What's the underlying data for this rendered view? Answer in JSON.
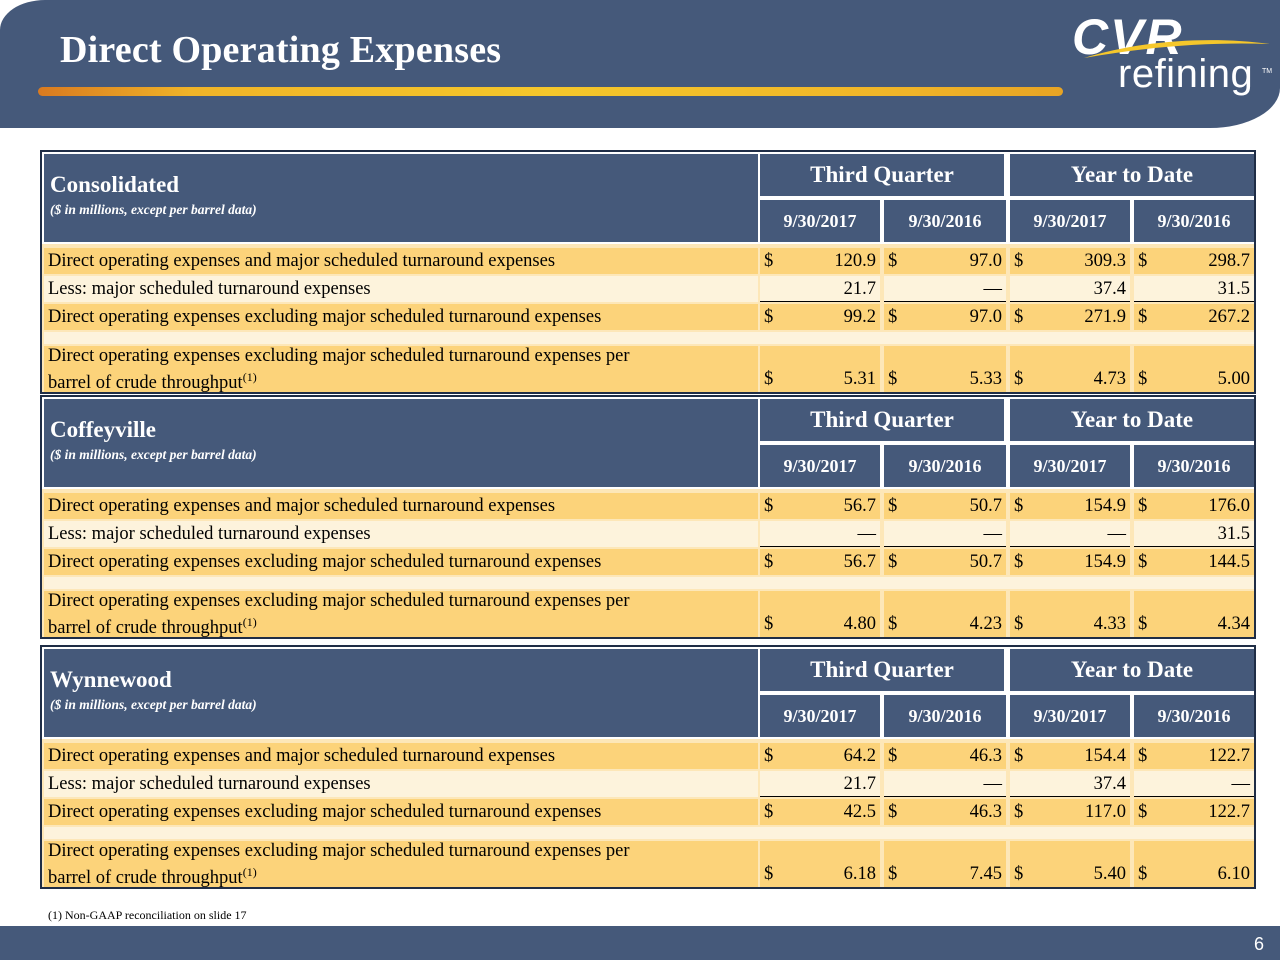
{
  "header": {
    "title": "Direct Operating Expenses"
  },
  "logo": {
    "brand": "CVR",
    "sub": "refining",
    "tm": "TM",
    "swoosh_color": "#f5c72b"
  },
  "labels": {
    "row1": "Direct operating expenses and major scheduled turnaround expenses",
    "row2": "Less: major scheduled turnaround expenses",
    "row3": "Direct operating expenses excluding major scheduled turnaround expenses",
    "row4_line1": "Direct operating expenses excluding major scheduled turnaround expenses per",
    "row4_line2": "barrel of crude throughput",
    "row4_sup": "(1)",
    "group1": "Third Quarter",
    "group2": "Year to Date",
    "date1": "9/30/2017",
    "date2": "9/30/2016",
    "date3": "9/30/2017",
    "date4": "9/30/2016",
    "subtitle": "($ in millions, except per barrel data)",
    "dollar": "$"
  },
  "sections": [
    {
      "name": "Consolidated",
      "row1": [
        "120.9",
        "97.0",
        "309.3",
        "298.7"
      ],
      "row2": [
        "21.7",
        "—",
        "37.4",
        "31.5"
      ],
      "row3": [
        "99.2",
        "97.0",
        "271.9",
        "267.2"
      ],
      "row4": [
        "5.31",
        "5.33",
        "4.73",
        "5.00"
      ]
    },
    {
      "name": "Coffeyville",
      "row1": [
        "56.7",
        "50.7",
        "154.9",
        "176.0"
      ],
      "row2": [
        "—",
        "—",
        "—",
        "31.5"
      ],
      "row3": [
        "56.7",
        "50.7",
        "154.9",
        "144.5"
      ],
      "row4": [
        "4.80",
        "4.23",
        "4.33",
        "4.34"
      ]
    },
    {
      "name": "Wynnewood",
      "row1": [
        "64.2",
        "46.3",
        "154.4",
        "122.7"
      ],
      "row2": [
        "21.7",
        "—",
        "37.4",
        "—"
      ],
      "row3": [
        "42.5",
        "46.3",
        "117.0",
        "122.7"
      ],
      "row4": [
        "6.18",
        "7.45",
        "5.40",
        "6.10"
      ]
    }
  ],
  "footnote": "(1)    Non-GAAP reconciliation on slide 17",
  "page_number": "6",
  "colors": {
    "navy": "#45597a",
    "gold": "#fcd37a",
    "light": "#fdf3dc"
  }
}
